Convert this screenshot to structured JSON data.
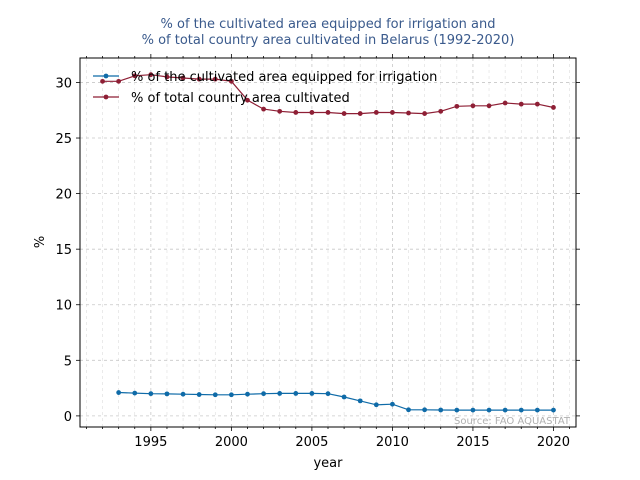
{
  "chart_data": {
    "type": "line",
    "title_line1": "% of the cultivated area equipped for irrigation and",
    "title_line2": "% of total country area cultivated in Belarus (1992-2020)",
    "xlabel": "year",
    "ylabel": "%",
    "xlim": [
      1990.6,
      2021.4
    ],
    "ylim": [
      -1,
      32.2
    ],
    "xticks": [
      1995,
      2000,
      2005,
      2010,
      2015,
      2020
    ],
    "yticks": [
      0,
      5,
      10,
      15,
      20,
      25,
      30
    ],
    "grid": true,
    "legend_position": "top-left",
    "source": "Source: FAO AQUASTAT",
    "series": [
      {
        "name": "% of the cultivated area equipped for irrigation",
        "color": "#0f6ba8",
        "x": [
          1993,
          1994,
          1995,
          1996,
          1997,
          1998,
          1999,
          2000,
          2001,
          2002,
          2003,
          2004,
          2005,
          2006,
          2007,
          2008,
          2009,
          2010,
          2011,
          2012,
          2013,
          2014,
          2015,
          2016,
          2017,
          2018,
          2019,
          2020
        ],
        "y": [
          2.1,
          2.05,
          2.0,
          1.98,
          1.95,
          1.92,
          1.9,
          1.9,
          1.95,
          2.0,
          2.02,
          2.02,
          2.02,
          2.0,
          1.7,
          1.35,
          1.0,
          1.05,
          0.55,
          0.55,
          0.53,
          0.52,
          0.52,
          0.52,
          0.52,
          0.52,
          0.52,
          0.52
        ]
      },
      {
        "name": "% of total country area cultivated",
        "color": "#8e1f35",
        "x": [
          1992,
          1993,
          1994,
          1995,
          1996,
          1997,
          1998,
          1999,
          2000,
          2001,
          2002,
          2003,
          2004,
          2005,
          2006,
          2007,
          2008,
          2009,
          2010,
          2011,
          2012,
          2013,
          2014,
          2015,
          2016,
          2017,
          2018,
          2019,
          2020
        ],
        "y": [
          30.1,
          30.1,
          30.6,
          30.7,
          30.5,
          30.4,
          30.3,
          30.3,
          30.1,
          28.4,
          27.6,
          27.4,
          27.3,
          27.3,
          27.3,
          27.2,
          27.2,
          27.3,
          27.3,
          27.25,
          27.2,
          27.4,
          27.85,
          27.9,
          27.9,
          28.15,
          28.05,
          28.05,
          27.75
        ]
      }
    ]
  }
}
